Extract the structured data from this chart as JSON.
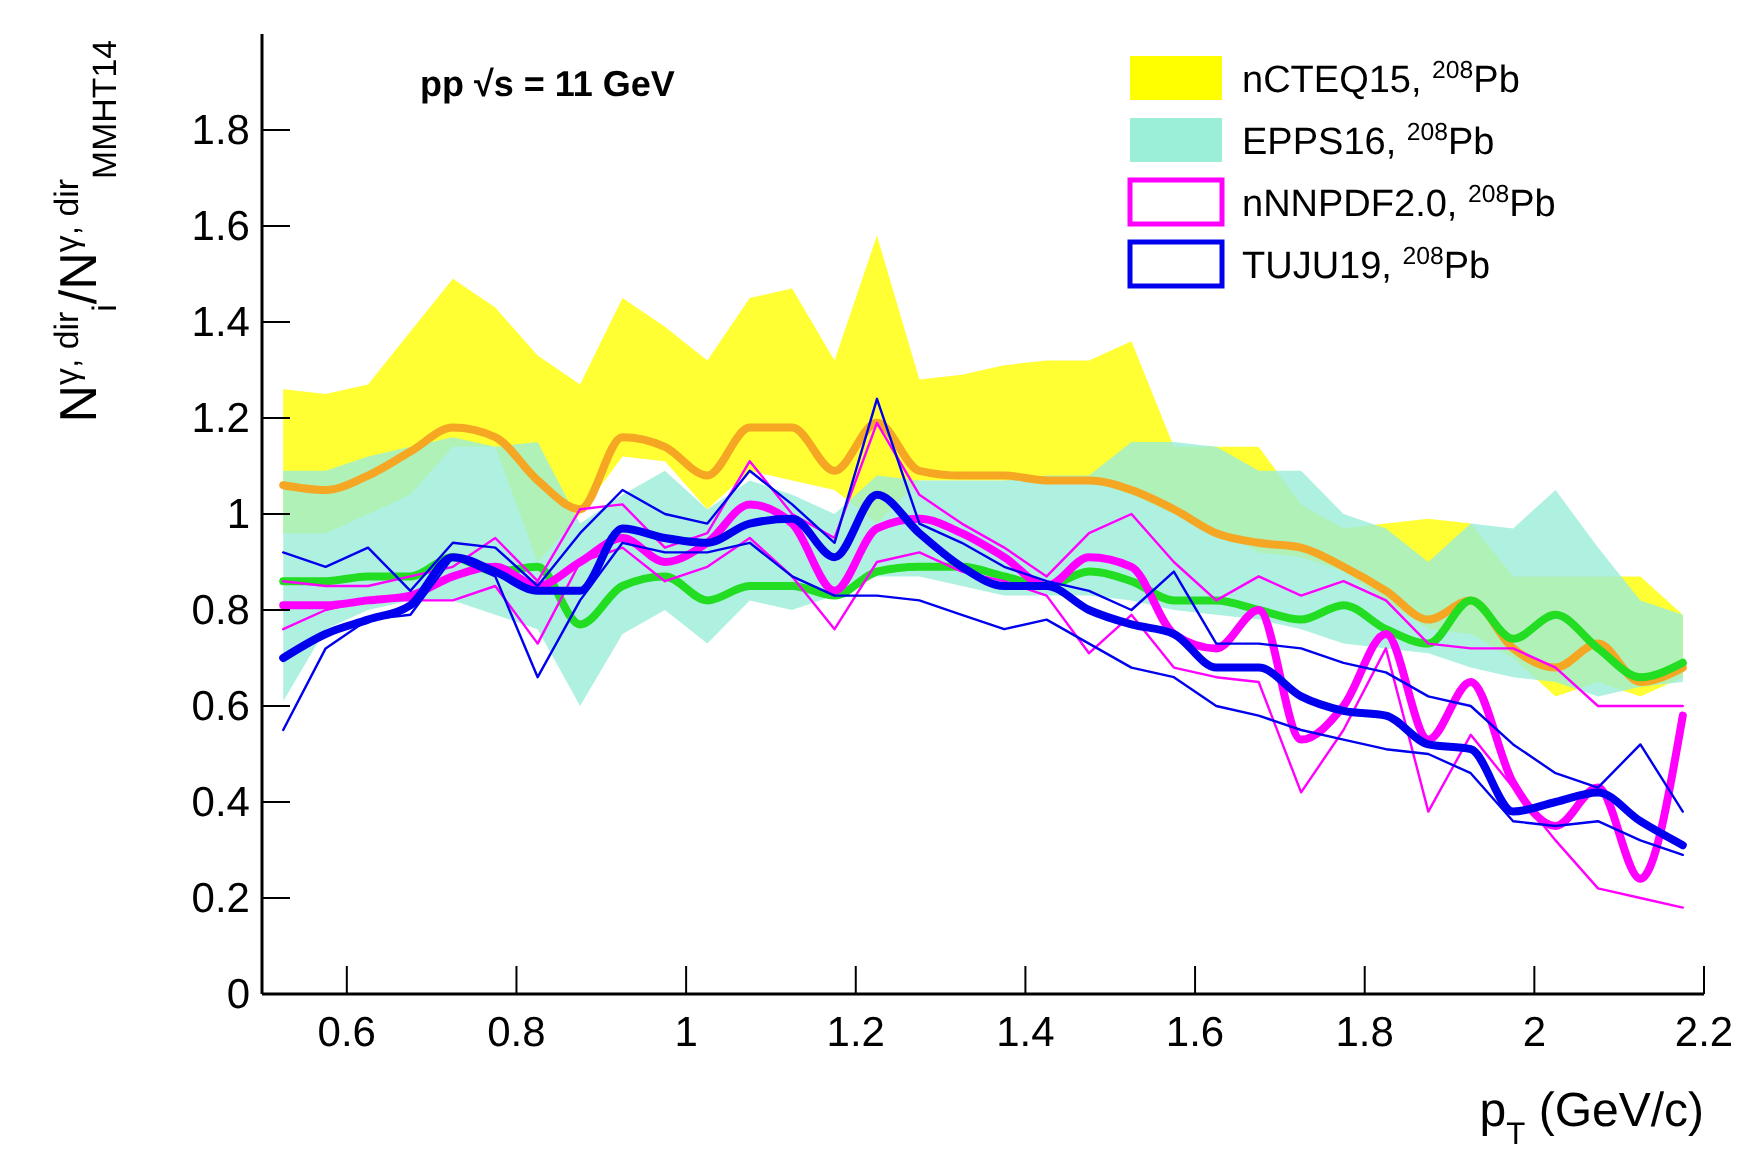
{
  "chart_data": {
    "type": "line",
    "xlabel": "p$_{T}$ (GeV/c)",
    "ylabel": "N$^{γ, dir}$$_{i}$/N$^{γ, dir}$$_{MMHT14}$",
    "annotations": [
      "pp  √s = 11 GeV"
    ],
    "x": [
      0.525,
      0.575,
      0.625,
      0.675,
      0.725,
      0.775,
      0.825,
      0.875,
      0.925,
      0.975,
      1.025,
      1.075,
      1.125,
      1.175,
      1.225,
      1.275,
      1.325,
      1.375,
      1.425,
      1.475,
      1.525,
      1.575,
      1.625,
      1.675,
      1.725,
      1.775,
      1.825,
      1.875,
      1.925,
      1.975,
      2.025,
      2.075,
      2.125,
      2.175
    ],
    "xlim": [
      0.5,
      2.2
    ],
    "xticks": [
      0.6,
      0.8,
      1,
      1.2,
      1.4,
      1.6,
      1.8,
      2,
      2.2
    ],
    "ylim": [
      0,
      2
    ],
    "yticks": [
      0,
      0.2,
      0.4,
      0.6,
      0.8,
      1,
      1.2,
      1.4,
      1.6,
      1.8
    ],
    "legend": "top right",
    "grid": false,
    "line_style": "solid",
    "series": [
      {
        "name": "nCTEQ15, $^{208}$Pb",
        "color": "#ffff00",
        "values": [
          null,
          null,
          null,
          null,
          null,
          null,
          null,
          null,
          null,
          null,
          null,
          null,
          null,
          null,
          null,
          null,
          null,
          null,
          null,
          null,
          null,
          null,
          null,
          null,
          null,
          null,
          null,
          null,
          null,
          null,
          null,
          null,
          null,
          null
        ],
        "upper": [
          1.26,
          1.25,
          1.27,
          1.38,
          1.49,
          1.43,
          1.33,
          1.27,
          1.45,
          1.39,
          1.32,
          1.45,
          1.47,
          1.32,
          1.58,
          1.28,
          1.29,
          1.31,
          1.32,
          1.32,
          1.36,
          1.14,
          1.14,
          1.14,
          1.02,
          0.97,
          0.98,
          0.99,
          0.98,
          0.87,
          0.87,
          0.87,
          0.87,
          0.79
        ],
        "lower": [
          0.96,
          0.96,
          1.0,
          1.04,
          1.14,
          1.14,
          0.9,
          1.0,
          1.12,
          1.11,
          1.01,
          1.09,
          1.07,
          1.05,
          0.98,
          1.07,
          1.07,
          1.07,
          1.07,
          1.07,
          1.04,
          1.0,
          0.97,
          0.92,
          0.91,
          0.88,
          0.82,
          0.76,
          0.75,
          0.7,
          0.62,
          0.65,
          0.62,
          0.66
        ]
      },
      {
        "color": "#f5a623",
        "values": [
          1.06,
          1.05,
          1.08,
          1.13,
          1.18,
          1.16,
          1.07,
          1.01,
          1.16,
          1.14,
          1.08,
          1.18,
          1.18,
          1.09,
          1.19,
          1.09,
          1.08,
          1.08,
          1.07,
          1.07,
          1.05,
          1.01,
          0.96,
          0.94,
          0.93,
          0.89,
          0.84,
          0.78,
          0.82,
          0.72,
          0.68,
          0.73,
          0.65,
          0.68
        ]
      },
      {
        "name": "EPPS16, $^{208}$Pb",
        "color": "#9beed8",
        "values": [
          null,
          null,
          null,
          null,
          null,
          null,
          null,
          null,
          null,
          null,
          null,
          null,
          null,
          null,
          null,
          null,
          null,
          null,
          null,
          null,
          null,
          null,
          null,
          null,
          null,
          null,
          null,
          null,
          null,
          null,
          null,
          null,
          null,
          null
        ],
        "upper": [
          1.09,
          1.09,
          1.12,
          1.14,
          1.16,
          1.14,
          1.15,
          0.98,
          1.04,
          1.09,
          1.01,
          1.07,
          1.04,
          1.0,
          1.08,
          1.07,
          1.07,
          1.07,
          1.08,
          1.08,
          1.15,
          1.15,
          1.14,
          1.09,
          1.09,
          1.0,
          0.97,
          0.9,
          0.98,
          0.97,
          1.05,
          0.93,
          0.82,
          0.79
        ],
        "lower": [
          0.61,
          0.76,
          0.8,
          0.82,
          0.82,
          0.79,
          0.76,
          0.6,
          0.75,
          0.8,
          0.73,
          0.82,
          0.8,
          0.83,
          0.87,
          0.87,
          0.85,
          0.83,
          0.83,
          0.83,
          0.82,
          0.8,
          0.79,
          0.78,
          0.76,
          0.73,
          0.72,
          0.71,
          0.68,
          0.66,
          0.65,
          0.62,
          0.64,
          0.65
        ]
      },
      {
        "color": "#22dd22",
        "values": [
          0.86,
          0.86,
          0.87,
          0.87,
          0.91,
          0.88,
          0.89,
          0.77,
          0.85,
          0.87,
          0.82,
          0.85,
          0.85,
          0.83,
          0.88,
          0.89,
          0.89,
          0.87,
          0.85,
          0.88,
          0.86,
          0.82,
          0.82,
          0.8,
          0.78,
          0.81,
          0.76,
          0.73,
          0.82,
          0.74,
          0.79,
          0.72,
          0.66,
          0.69
        ]
      },
      {
        "name": "nNNPDF2.0, $^{208}$Pb",
        "color": "#ff00ff",
        "values": [
          0.81,
          0.81,
          0.82,
          0.83,
          0.87,
          0.89,
          0.85,
          0.9,
          0.95,
          0.9,
          0.94,
          1.02,
          0.98,
          0.84,
          0.97,
          0.99,
          0.96,
          0.91,
          0.85,
          0.91,
          0.89,
          0.75,
          0.72,
          0.8,
          0.53,
          0.6,
          0.75,
          0.53,
          0.65,
          0.44,
          0.35,
          0.43,
          0.24,
          0.58
        ]
      },
      {
        "color": "#ff00ff",
        "values": [
          0.86,
          0.85,
          0.85,
          0.87,
          0.89,
          0.95,
          0.86,
          1.01,
          1.02,
          0.93,
          0.96,
          1.11,
          1.0,
          0.95,
          1.19,
          1.04,
          0.98,
          0.93,
          0.87,
          0.96,
          1.0,
          0.9,
          0.82,
          0.87,
          0.83,
          0.86,
          0.82,
          0.73,
          0.72,
          0.72,
          0.68,
          0.6,
          0.6,
          0.6
        ]
      },
      {
        "color": "#ff00ff",
        "values": [
          0.76,
          0.8,
          0.82,
          0.82,
          0.82,
          0.85,
          0.73,
          0.9,
          0.93,
          0.86,
          0.89,
          0.95,
          0.87,
          0.76,
          0.9,
          0.92,
          0.88,
          0.86,
          0.83,
          0.71,
          0.79,
          0.68,
          0.66,
          0.65,
          0.42,
          0.55,
          0.72,
          0.38,
          0.54,
          0.43,
          0.32,
          0.22,
          0.2,
          0.18
        ]
      },
      {
        "name": "TUJU19, $^{208}$Pb",
        "color": "#0000ee",
        "values": [
          0.7,
          0.75,
          0.78,
          0.81,
          0.91,
          0.88,
          0.84,
          0.84,
          0.97,
          0.95,
          0.94,
          0.98,
          0.99,
          0.91,
          1.04,
          0.96,
          0.89,
          0.85,
          0.85,
          0.8,
          0.77,
          0.75,
          0.68,
          0.68,
          0.62,
          0.59,
          0.58,
          0.52,
          0.51,
          0.38,
          0.4,
          0.42,
          0.36,
          0.31
        ]
      },
      {
        "color": "#0000ee",
        "values": [
          0.92,
          0.89,
          0.93,
          0.84,
          0.94,
          0.93,
          0.85,
          0.96,
          1.05,
          1.0,
          0.98,
          1.09,
          1.02,
          0.94,
          1.24,
          0.98,
          0.94,
          0.89,
          0.86,
          0.84,
          0.8,
          0.88,
          0.73,
          0.73,
          0.72,
          0.69,
          0.67,
          0.62,
          0.6,
          0.52,
          0.46,
          0.43,
          0.52,
          0.38
        ]
      },
      {
        "color": "#0000ee",
        "values": [
          0.55,
          0.72,
          0.78,
          0.79,
          0.91,
          0.87,
          0.66,
          0.82,
          0.94,
          0.92,
          0.92,
          0.94,
          0.87,
          0.83,
          0.83,
          0.82,
          0.79,
          0.76,
          0.78,
          0.73,
          0.68,
          0.66,
          0.6,
          0.58,
          0.55,
          0.53,
          0.51,
          0.5,
          0.46,
          0.36,
          0.35,
          0.36,
          0.32,
          0.29
        ]
      }
    ]
  }
}
